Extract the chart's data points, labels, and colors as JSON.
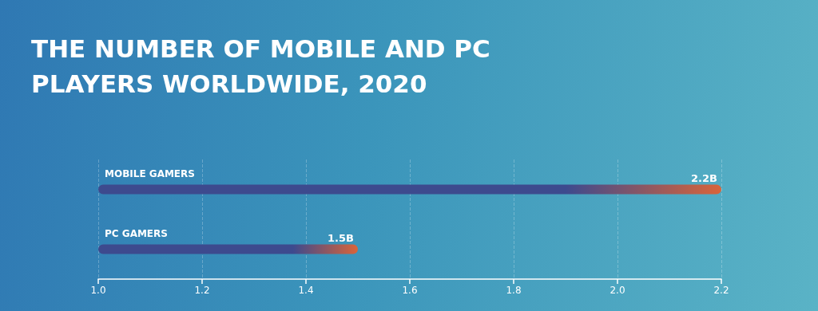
{
  "chart_data": {
    "type": "bar",
    "orientation": "horizontal",
    "title": "THE NUMBER OF MOBILE AND PC PLAYERS WORLDWIDE, 2020",
    "categories": [
      "MOBILE GAMERS",
      "PC GAMERS"
    ],
    "series": [
      {
        "color": "#3d4a8e",
        "values": [
          2.2,
          1.5
        ],
        "value_labels": [
          "2.2B",
          "1.5B"
        ]
      }
    ],
    "xlim": [
      1.0,
      2.2
    ],
    "xticks": [
      {
        "value": 1.0,
        "label": "1.0"
      },
      {
        "value": 1.2,
        "label": "1.2"
      },
      {
        "value": 1.4,
        "label": "1.4"
      },
      {
        "value": 1.6,
        "label": "1.6"
      },
      {
        "value": 1.8,
        "label": "1.8"
      },
      {
        "value": 2.0,
        "label": "2.0"
      },
      {
        "value": 2.2,
        "label": "2.2"
      }
    ],
    "grid": "x"
  }
}
